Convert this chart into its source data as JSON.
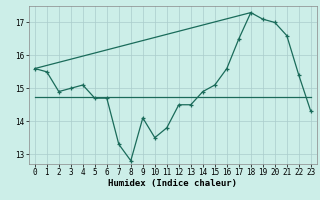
{
  "xlabel": "Humidex (Indice chaleur)",
  "xlim": [
    -0.5,
    23.5
  ],
  "ylim": [
    12.7,
    17.5
  ],
  "yticks": [
    13,
    14,
    15,
    16,
    17
  ],
  "xticks": [
    0,
    1,
    2,
    3,
    4,
    5,
    6,
    7,
    8,
    9,
    10,
    11,
    12,
    13,
    14,
    15,
    16,
    17,
    18,
    19,
    20,
    21,
    22,
    23
  ],
  "bg_color": "#cceee8",
  "line_color": "#1a6b5a",
  "grid_color": "#aacccc",
  "line1_x": [
    0,
    1,
    2,
    3,
    4,
    5,
    6,
    7,
    8,
    9,
    10,
    11,
    12,
    13,
    14,
    15,
    16,
    17,
    18,
    19,
    20,
    21,
    22,
    23
  ],
  "line1_y": [
    15.6,
    15.5,
    14.9,
    15.0,
    15.1,
    14.7,
    14.7,
    13.3,
    12.8,
    14.1,
    13.5,
    13.8,
    14.5,
    14.5,
    14.9,
    15.1,
    15.6,
    16.5,
    17.3,
    17.1,
    17.0,
    16.6,
    15.4,
    14.3
  ],
  "line2_x": [
    0,
    4,
    23
  ],
  "line2_y": [
    14.75,
    14.75,
    14.75
  ],
  "line3_x": [
    0,
    18
  ],
  "line3_y": [
    15.6,
    17.3
  ],
  "fontsize_label": 6.5,
  "fontsize_tick": 5.5
}
